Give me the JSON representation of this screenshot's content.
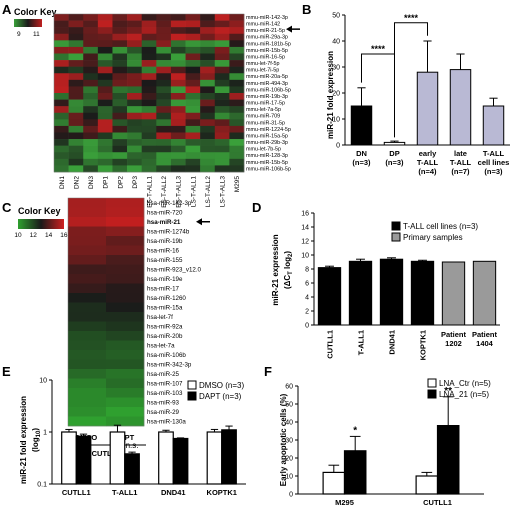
{
  "panels": {
    "A": {
      "letter": "A",
      "color_key": {
        "title": "Color Key",
        "low": "9",
        "high": "11",
        "colors": [
          "#3aa03a",
          "#1a1a1a",
          "#c02020"
        ]
      },
      "rows": [
        "mmu-miR-142-3p",
        "mmu-miR-142",
        "mmu-miR-21-5p",
        "mmu-miR-29a-3p",
        "mmu-miR-181b-5p",
        "mmu-miR-15b-5p",
        "mmu-miR-16-5p",
        "mmu-let-7f-5p",
        "mmu-let-7i-5p",
        "mmu-miR-20a-5p",
        "mmu-miR-494-3p",
        "mmu-miR-106b-5p",
        "mmu-miR-19b-3p",
        "mmu-miR-17-5p",
        "mmu-let-7a-5p",
        "mmu-miR-709",
        "mmu-miR-31-5p",
        "mmu-miR-1224-5p",
        "mmu-miR-15a-5p",
        "mmu-miR-29b-3p",
        "mmu-let-7b-5p",
        "mmu-miR-128-3p",
        "mmu-miR-15b-5p",
        "mmu-miR-106b-5p"
      ],
      "columns": [
        "DN1",
        "DN2",
        "DN3",
        "DP1",
        "DP2",
        "DP3",
        "ES-T-ALL1",
        "ES-T-ALL2",
        "ES-T-ALL3",
        "LS-T-ALL1",
        "LS-T-ALL2",
        "LS-T-ALL3",
        "M295"
      ]
    },
    "B": {
      "letter": "B",
      "ylabel": "miR-21 fold expression",
      "sig1": "****",
      "sig2": "****"
    },
    "C": {
      "letter": "C",
      "color_key": {
        "title": "Color Key",
        "ticks": [
          "10",
          "12",
          "14",
          "16"
        ],
        "colors": [
          "#2fa02f",
          "#1a1a1a",
          "#d02020"
        ]
      },
      "rows": [
        "hsa-miR-142-3p",
        "hsa-miR-720",
        "hsa-miR-21",
        "hsa-miR-1274b",
        "hsa-miR-19b",
        "hsa-miR-16",
        "hsa-miR-155",
        "hsa-miR-923_v12.0",
        "hsa-miR-19e",
        "hsa-miR-17",
        "hsa-miR-1260",
        "hsa-miR-15a",
        "hsa-let-7f",
        "hsa-miR-92a",
        "hsa-miR-20b",
        "hsa-let-7a",
        "hsa-miR-106b",
        "hsa-miR-342-3p",
        "hsa-miR-25",
        "hsa-miR-107",
        "hsa-miR-103",
        "hsa-miR-93",
        "hsa-miR-29",
        "hsa-miR-130a"
      ],
      "columns": [
        "DMSO",
        "DAPT"
      ],
      "group": "CUTLL1"
    },
    "D": {
      "letter": "D",
      "ylabel": "miR-21 expression",
      "ylabel2_a": "(ΔC",
      "ylabel2_sub": "T",
      "ylabel2_b": " log",
      "ylabel2_sub2": "2",
      "ylabel2_c": ")"
    },
    "E": {
      "letter": "E",
      "ylabel": "miR-21 fold expression",
      "ylabel2_a": "(log",
      "ylabel2_sub": "10",
      "ylabel2_c": ")",
      "ns_label": "n.s."
    },
    "F": {
      "letter": "F",
      "ylabel": "Early apoptotic cells (%)",
      "sig1": "*",
      "sig2": "**"
    }
  },
  "chart_data": [
    {
      "panel": "B",
      "type": "bar",
      "categories": [
        "DN\n(n=3)",
        "DP\n(n=3)",
        "early\nT-ALL\n(n=4)",
        "late\nT-ALL\n(n=7)",
        "T-ALL\ncell lines\n(n=3)"
      ],
      "values": [
        15,
        1,
        28,
        29,
        15
      ],
      "errors": [
        7,
        0.5,
        12,
        6,
        3
      ],
      "colors": [
        "#000000",
        "#ffffff",
        "#b9b9d4",
        "#b9b9d4",
        "#b9b9d4"
      ],
      "ylabel": "miR-21 fold expression",
      "ylim": [
        0,
        50
      ],
      "yticks": [
        0,
        10,
        20,
        30,
        40,
        50
      ]
    },
    {
      "panel": "D",
      "type": "bar",
      "categories": [
        "CUTLL1",
        "T-ALL1",
        "DND41",
        "KOPTK1",
        "Patient\n1202",
        "Patient\n1404"
      ],
      "values": [
        8.2,
        9.1,
        9.4,
        9.1,
        9.0,
        9.1
      ],
      "errors": [
        0.2,
        0.3,
        0.2,
        0.15,
        0,
        0
      ],
      "colors": [
        "#000000",
        "#000000",
        "#000000",
        "#000000",
        "#9a9a9a",
        "#9a9a9a"
      ],
      "ylim": [
        0,
        16
      ],
      "yticks": [
        0,
        2,
        4,
        6,
        8,
        10,
        12,
        14,
        16
      ],
      "legend": [
        {
          "name": "T-ALL cell lines (n=3)",
          "color": "#000000"
        },
        {
          "name": "Primary samples",
          "color": "#9a9a9a"
        }
      ]
    },
    {
      "panel": "E",
      "type": "bar",
      "scale": "log",
      "categories": [
        "CUTLL1",
        "T-ALL1",
        "DND41",
        "KOPTK1"
      ],
      "series": [
        {
          "name": "DMSO (n=3)",
          "color": "#ffffff",
          "values": [
            1.0,
            1.0,
            1.0,
            1.0
          ],
          "errors": [
            0.12,
            0.35,
            0.08,
            0.12
          ]
        },
        {
          "name": "DAPT (n=3)",
          "color": "#000000",
          "values": [
            0.83,
            0.38,
            0.75,
            1.1
          ],
          "errors": [
            0.08,
            0.03,
            0.02,
            0.2
          ]
        }
      ],
      "ylim": [
        0.1,
        10
      ],
      "yticks": [
        0.1,
        1,
        10
      ]
    },
    {
      "panel": "F",
      "type": "bar",
      "categories": [
        "M295",
        "CUTLL1"
      ],
      "series": [
        {
          "name": "LNA_Ctr (n=5)",
          "color": "#ffffff",
          "values": [
            12,
            10
          ],
          "errors": [
            4,
            2
          ]
        },
        {
          "name": "LNA_21 (n=5)",
          "color": "#000000",
          "values": [
            24,
            38
          ],
          "errors": [
            8,
            16
          ]
        }
      ],
      "ylim": [
        0,
        60
      ],
      "yticks": [
        0,
        10,
        20,
        30,
        40,
        50,
        60
      ]
    }
  ]
}
